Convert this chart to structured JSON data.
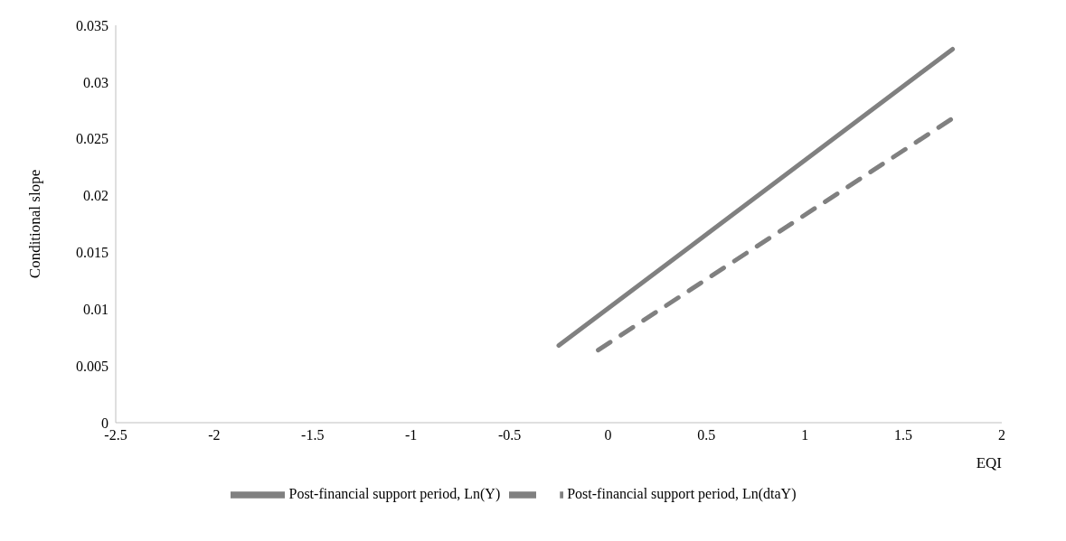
{
  "chart_data": {
    "type": "line",
    "xlabel": "EQI",
    "ylabel": "Conditional slope",
    "xlim": [
      -2.5,
      2
    ],
    "xticks": [
      -2.5,
      -2,
      -1.5,
      -1,
      -0.5,
      0,
      0.5,
      1,
      1.5,
      2
    ],
    "ylim": [
      0,
      0.035
    ],
    "yticks": [
      0,
      0.005,
      0.01,
      0.015,
      0.02,
      0.025,
      0.03,
      0.035
    ],
    "grid": false,
    "legend": "bottom",
    "marker": "none",
    "series": [
      {
        "name": "Post-financial support period, Ln(Y)",
        "color": "#808080",
        "line_style": "solid",
        "x": [
          -0.25,
          1.75
        ],
        "values": [
          0.0068,
          0.0329
        ]
      },
      {
        "name": "Post-financial support period, Ln(dtaY)",
        "color": "#808080",
        "line_style": "dashed",
        "x": [
          -0.05,
          1.75
        ],
        "values": [
          0.0064,
          0.0268
        ]
      }
    ]
  }
}
